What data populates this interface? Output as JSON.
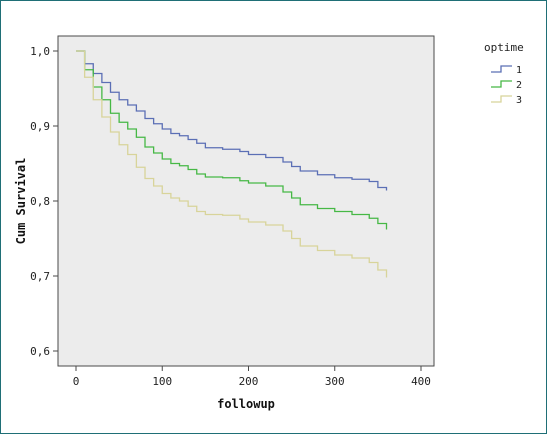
{
  "chart_data": {
    "type": "line",
    "xlabel": "followup",
    "ylabel": "Cum Survival",
    "xlim": [
      0,
      400
    ],
    "ylim": [
      0.6,
      1.0
    ],
    "x_ticks": [
      "0",
      "100",
      "200",
      "300",
      "400"
    ],
    "y_ticks": [
      "0,6",
      "0,7",
      "0,8",
      "0,9",
      "1,0"
    ],
    "grid": false,
    "step": true,
    "legend_title": "optime",
    "legend_position": "right",
    "series": [
      {
        "name": "1",
        "color": "#5b6fb5",
        "x": [
          0,
          10,
          20,
          30,
          40,
          50,
          60,
          70,
          80,
          90,
          100,
          110,
          120,
          130,
          140,
          150,
          170,
          190,
          200,
          220,
          240,
          250,
          260,
          280,
          300,
          320,
          340,
          350,
          360
        ],
        "y": [
          1.0,
          0.983,
          0.97,
          0.958,
          0.945,
          0.935,
          0.928,
          0.92,
          0.91,
          0.903,
          0.896,
          0.89,
          0.887,
          0.882,
          0.877,
          0.871,
          0.869,
          0.866,
          0.862,
          0.858,
          0.852,
          0.846,
          0.84,
          0.835,
          0.831,
          0.829,
          0.826,
          0.818,
          0.814
        ]
      },
      {
        "name": "2",
        "color": "#46b845",
        "x": [
          0,
          10,
          20,
          30,
          40,
          50,
          60,
          70,
          80,
          90,
          100,
          110,
          120,
          130,
          140,
          150,
          170,
          190,
          200,
          220,
          240,
          250,
          260,
          280,
          300,
          320,
          340,
          350,
          360
        ],
        "y": [
          1.0,
          0.975,
          0.952,
          0.935,
          0.917,
          0.905,
          0.896,
          0.885,
          0.872,
          0.864,
          0.856,
          0.85,
          0.847,
          0.842,
          0.836,
          0.832,
          0.831,
          0.827,
          0.824,
          0.82,
          0.812,
          0.804,
          0.795,
          0.79,
          0.786,
          0.782,
          0.777,
          0.77,
          0.762
        ]
      },
      {
        "name": "3",
        "color": "#d8d49a",
        "x": [
          0,
          10,
          20,
          30,
          40,
          50,
          60,
          70,
          80,
          90,
          100,
          110,
          120,
          130,
          140,
          150,
          170,
          190,
          200,
          220,
          240,
          250,
          260,
          280,
          300,
          320,
          340,
          350,
          360
        ],
        "y": [
          1.0,
          0.965,
          0.935,
          0.912,
          0.892,
          0.875,
          0.862,
          0.845,
          0.83,
          0.82,
          0.81,
          0.804,
          0.8,
          0.793,
          0.786,
          0.782,
          0.781,
          0.776,
          0.772,
          0.768,
          0.76,
          0.75,
          0.74,
          0.734,
          0.728,
          0.724,
          0.718,
          0.708,
          0.698
        ]
      }
    ]
  }
}
